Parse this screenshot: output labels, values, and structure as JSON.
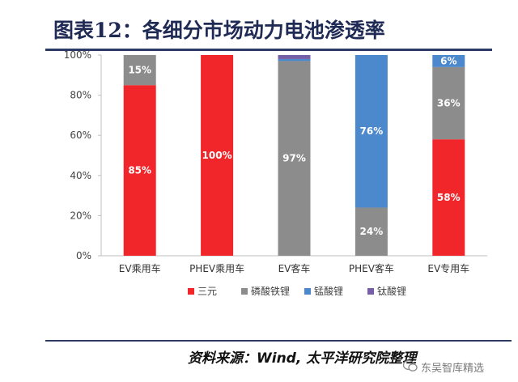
{
  "header": {
    "title": "图表12：各细分市场动力电池渗透率"
  },
  "footer": {
    "source": "资料来源：Wind, 太平洋研究院整理",
    "watermark": "东吴智库精选"
  },
  "colors": {
    "三元": "#f0262a",
    "磷酸铁锂": "#8c8c8c",
    "锰酸锂": "#4c88cc",
    "钛酸锂": "#7560a8"
  },
  "chart_data": {
    "type": "bar",
    "stacked": true,
    "categories": [
      "EV乘用车",
      "PHEV乘用车",
      "EV客车",
      "PHEV客车",
      "EV专用车"
    ],
    "series": [
      {
        "name": "三元",
        "values": [
          85,
          100,
          0,
          0,
          58
        ],
        "labels": [
          "85%",
          "100%",
          "",
          "",
          "58%"
        ]
      },
      {
        "name": "磷酸铁锂",
        "values": [
          15,
          0,
          97,
          24,
          36
        ],
        "labels": [
          "15%",
          "",
          "97%",
          "24%",
          "36%"
        ]
      },
      {
        "name": "锰酸锂",
        "values": [
          0,
          0,
          1,
          76,
          6
        ],
        "labels": [
          "",
          "",
          "",
          "76%",
          "6%"
        ]
      },
      {
        "name": "钛酸锂",
        "values": [
          0,
          0,
          2,
          0,
          0
        ],
        "labels": [
          "",
          "",
          "",
          "",
          ""
        ]
      }
    ],
    "ylim": [
      0,
      100
    ],
    "yticks": [
      "0%",
      "20%",
      "40%",
      "60%",
      "80%",
      "100%"
    ],
    "grid": false,
    "legend": "bottom"
  }
}
